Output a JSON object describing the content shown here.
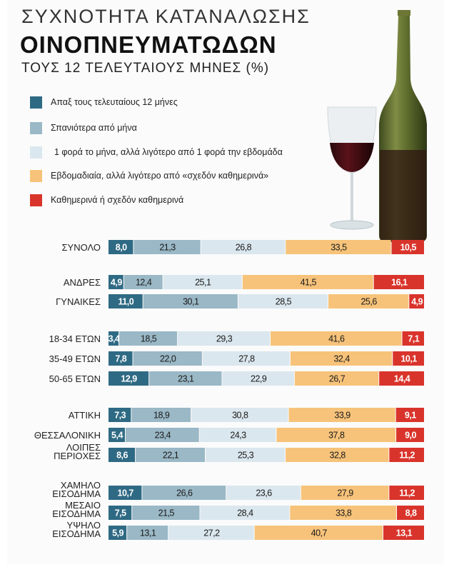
{
  "title": {
    "line1": "ΣΥΧΝΟΤΗΤΑ ΚΑΤΑΝΑΛΩΣΗΣ",
    "line2": "ΟΙΝΟΠΝΕΥΜΑΤΩΔΩΝ",
    "line3": "ΤΟΥΣ 12 ΤΕΛΕΥΤΑΙΟΥΣ ΜΗΝΕΣ (%)"
  },
  "colors": {
    "series": [
      "#2f6a84",
      "#9ab8c6",
      "#dbe7ee",
      "#f7c37a",
      "#d9342b"
    ],
    "label_light": "#ffffff",
    "label_dark": "#1a1a1a"
  },
  "chart_data": {
    "type": "bar",
    "orientation": "horizontal-stacked-100",
    "xlim": [
      0,
      100
    ],
    "legend_placement": "top-left",
    "series": [
      {
        "name": "Απαξ τους τελευταίους 12 μήνες"
      },
      {
        "name": "Σπανιότερα από μήνα"
      },
      {
        "name": "1 φορά το μήνα, αλλά λιγότερο από 1 φορά την εβδομάδα"
      },
      {
        "name": "Εβδομαδιαία, αλλά λιγότερο από «σχεδόν καθημερινά»"
      },
      {
        "name": "Καθημερινά ή σχεδόν καθημερινά"
      }
    ],
    "groups": [
      {
        "rows": [
          {
            "label": [
              "ΣΥΝΟΛΟ"
            ],
            "values": [
              8.0,
              21.3,
              26.8,
              33.5,
              10.5
            ],
            "texts": [
              "8,0",
              "21,3",
              "26,8",
              "33,5",
              "10,5"
            ]
          }
        ]
      },
      {
        "rows": [
          {
            "label": [
              "ΑΝΔΡΕΣ"
            ],
            "values": [
              4.9,
              12.4,
              25.1,
              41.5,
              16.1
            ],
            "texts": [
              "4,9",
              "12,4",
              "25,1",
              "41,5",
              "16,1"
            ]
          },
          {
            "label": [
              "ΓΥΝΑΙΚΕΣ"
            ],
            "values": [
              11.0,
              30.1,
              28.5,
              25.6,
              4.9
            ],
            "texts": [
              "11,0",
              "30,1",
              "28,5",
              "25,6",
              "4,9"
            ]
          }
        ]
      },
      {
        "rows": [
          {
            "label": [
              "18-34 ΕΤΩΝ"
            ],
            "values": [
              3.4,
              18.5,
              29.3,
              41.6,
              7.1
            ],
            "texts": [
              "3,4",
              "18,5",
              "29,3",
              "41,6",
              "7,1"
            ]
          },
          {
            "label": [
              "35-49 ΕΤΩΝ"
            ],
            "values": [
              7.8,
              22.0,
              27.8,
              32.4,
              10.1
            ],
            "texts": [
              "7,8",
              "22,0",
              "27,8",
              "32,4",
              "10,1"
            ]
          },
          {
            "label": [
              "50-65 ΕΤΩΝ"
            ],
            "values": [
              12.9,
              23.1,
              22.9,
              26.7,
              14.4
            ],
            "texts": [
              "12,9",
              "23,1",
              "22,9",
              "26,7",
              "14,4"
            ]
          }
        ]
      },
      {
        "rows": [
          {
            "label": [
              "ΑΤΤΙΚΗ"
            ],
            "values": [
              7.3,
              18.9,
              30.8,
              33.9,
              9.1
            ],
            "texts": [
              "7,3",
              "18,9",
              "30,8",
              "33,9",
              "9,1"
            ]
          },
          {
            "label": [
              "ΘΕΣΣΑΛΟΝΙΚΗ"
            ],
            "values": [
              5.4,
              23.4,
              24.3,
              37.8,
              9.0
            ],
            "texts": [
              "5,4",
              "23,4",
              "24,3",
              "37,8",
              "9,0"
            ]
          },
          {
            "label": [
              "ΛΟΙΠΕΣ",
              "ΠΕΡΙΟΧΕΣ"
            ],
            "values": [
              8.6,
              22.1,
              25.3,
              32.8,
              11.2
            ],
            "texts": [
              "8,6",
              "22,1",
              "25,3",
              "32,8",
              "11,2"
            ]
          }
        ]
      },
      {
        "rows": [
          {
            "label": [
              "ΧΑΜΗΛΟ",
              "ΕΙΣΟΔΗΜΑ"
            ],
            "values": [
              10.7,
              26.6,
              23.6,
              27.9,
              11.2
            ],
            "texts": [
              "10,7",
              "26,6",
              "23,6",
              "27,9",
              "11,2"
            ]
          },
          {
            "label": [
              "ΜΕΣΑΙΟ",
              "ΕΙΣΟΔΗΜΑ"
            ],
            "values": [
              7.5,
              21.5,
              28.4,
              33.8,
              8.8
            ],
            "texts": [
              "7,5",
              "21,5",
              "28,4",
              "33,8",
              "8,8"
            ]
          },
          {
            "label": [
              "ΥΨΗΛΟ",
              "ΕΙΣΟΔΗΜΑ"
            ],
            "values": [
              5.9,
              13.1,
              27.2,
              40.7,
              13.1
            ],
            "texts": [
              "5,9",
              "13,1",
              "27,2",
              "40,7",
              "13,1"
            ]
          }
        ]
      }
    ]
  }
}
